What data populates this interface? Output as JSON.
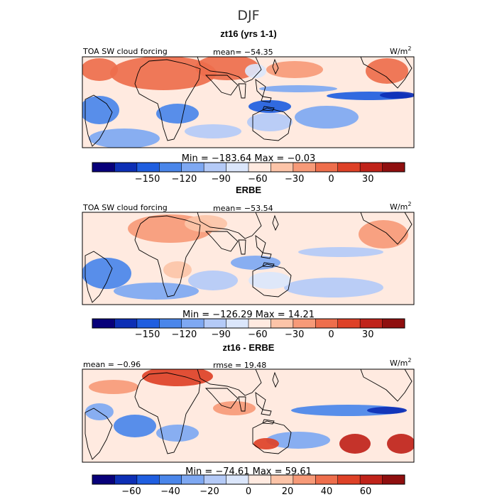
{
  "chart_data": {
    "type": "heatmap",
    "title": "DJF",
    "colors": {
      "c0": "#08007a",
      "c1": "#0d2fb5",
      "c2": "#1f5ee0",
      "c3": "#4a86ea",
      "c4": "#7ea8f2",
      "c5": "#b4caf7",
      "c6": "#dbe6fb",
      "c7": "#ffeae0",
      "c8": "#fcc4a8",
      "c9": "#f79a78",
      "c10": "#ee6e4c",
      "c11": "#de4127",
      "c12": "#c0231a",
      "c13": "#8f0f0f",
      "coast": "#000000",
      "background": "#ffffff"
    },
    "panels": [
      {
        "subtitle": "zt16 (yrs 1-1)",
        "left_label": "TOA SW cloud forcing",
        "center_label": "mean= −54.35",
        "units": "W/m",
        "units_exp": "2",
        "minmax": "Min = −183.64  Max =  −0.03",
        "colorbar_ticks": [
          "−150",
          "−120",
          "−90",
          "−60",
          "−30",
          "0",
          "30"
        ],
        "colorbar_tick_values": [
          -150,
          -120,
          -90,
          -60,
          -30,
          0,
          30
        ],
        "colorbar_range": [
          -195,
          60
        ],
        "field_range": [
          -183.64,
          -0.03
        ]
      },
      {
        "subtitle": "ERBE",
        "left_label": "TOA SW cloud forcing",
        "center_label": "mean= −53.54",
        "units": "W/m",
        "units_exp": "2",
        "minmax": "Min = −126.29  Max =  14.21",
        "colorbar_ticks": [
          "−150",
          "−120",
          "−90",
          "−60",
          "−30",
          "0",
          "30"
        ],
        "colorbar_tick_values": [
          -150,
          -120,
          -90,
          -60,
          -30,
          0,
          30
        ],
        "colorbar_range": [
          -195,
          60
        ],
        "field_range": [
          -126.29,
          14.21
        ]
      },
      {
        "subtitle": "zt16 - ERBE",
        "left_label": "mean =  −0.96",
        "center_label": "rmse =  19.48",
        "units": "W/m",
        "units_exp": "2",
        "minmax": "Min = −74.61  Max =  59.61",
        "colorbar_ticks": [
          "−60",
          "−40",
          "−20",
          "0",
          "20",
          "40",
          "60"
        ],
        "colorbar_tick_values": [
          -60,
          -40,
          -20,
          0,
          20,
          40,
          60
        ],
        "colorbar_range": [
          -80,
          80
        ],
        "field_range": [
          -74.61,
          59.61
        ]
      }
    ]
  }
}
